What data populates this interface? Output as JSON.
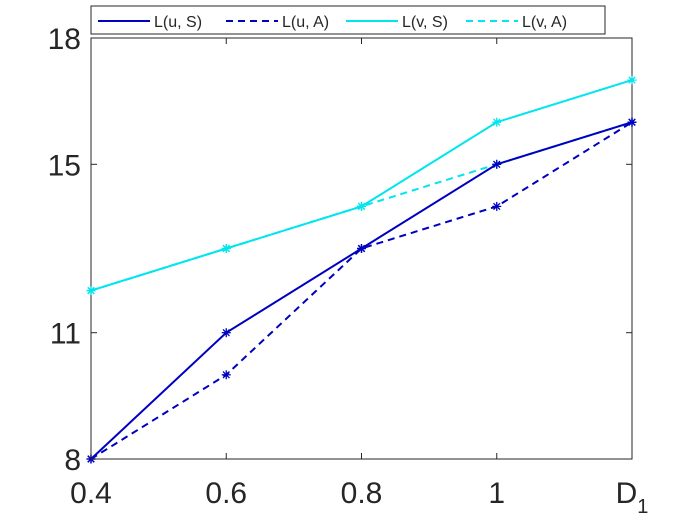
{
  "chart_data": {
    "type": "line",
    "x": [
      0.4,
      0.6,
      0.8,
      1.0,
      1.2
    ],
    "xticks": [
      "0.4",
      "0.6",
      "0.8",
      "1"
    ],
    "xlabel_main": "D",
    "xlabel_sub": "1",
    "yticks": [
      "8",
      "11",
      "15",
      "18"
    ],
    "xlim": [
      0.4,
      1.2
    ],
    "ylim": [
      8,
      18
    ],
    "legend_position": "top",
    "series": [
      {
        "name": "L(u, S)",
        "color": "#0000c0",
        "dash": "solid",
        "marker": "star",
        "values": [
          8,
          11,
          13,
          15,
          16
        ]
      },
      {
        "name": "L(u, A)",
        "color": "#0000c0",
        "dash": "dashed",
        "marker": "star",
        "values": [
          8,
          10,
          13,
          14,
          16
        ]
      },
      {
        "name": "L(v, S)",
        "color": "#00e5ee",
        "dash": "solid",
        "marker": "star",
        "values": [
          12,
          13,
          14,
          16,
          17
        ]
      },
      {
        "name": "L(v, A)",
        "color": "#00e5ee",
        "dash": "dashed",
        "marker": "star",
        "values": [
          12,
          13,
          14,
          15,
          16
        ]
      }
    ]
  }
}
